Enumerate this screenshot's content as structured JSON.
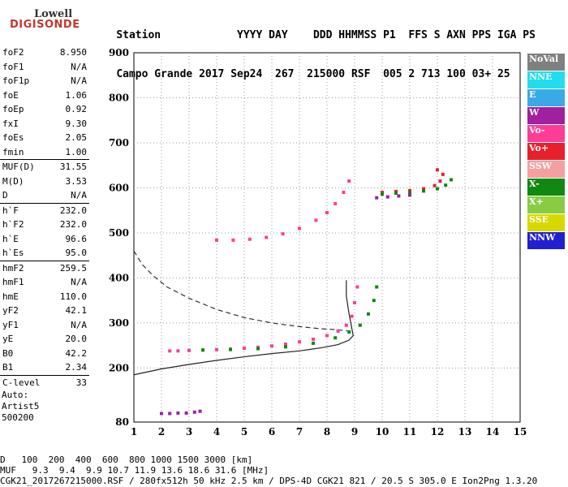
{
  "logo": {
    "line1": "Lowell",
    "line2": "DIGISONDE"
  },
  "header": {
    "row1": [
      "Station",
      "YYYY",
      "DAY",
      "DDD",
      "HHMMSS",
      "P1",
      "FFS",
      "S",
      "AXN",
      "PPS",
      "IGA",
      "PS"
    ],
    "row2": [
      "Campo Grande",
      "2017",
      "Sep24",
      "267",
      "215000",
      "RSF",
      "005",
      "2",
      "713",
      "100",
      "03+",
      "25"
    ]
  },
  "params": [
    {
      "label": "foF2",
      "value": "8.950"
    },
    {
      "label": "foF1",
      "value": "N/A"
    },
    {
      "label": "foF1p",
      "value": "N/A"
    },
    {
      "label": "foE",
      "value": "1.06"
    },
    {
      "label": "foEp",
      "value": "0.92"
    },
    {
      "label": "fxI",
      "value": "9.30"
    },
    {
      "label": "foEs",
      "value": "2.05"
    },
    {
      "label": "fmin",
      "value": "1.00"
    },
    {
      "label": "MUF(D)",
      "value": "31.55",
      "sep": true
    },
    {
      "label": "M(D)",
      "value": "3.53"
    },
    {
      "label": "D",
      "value": "N/A"
    },
    {
      "label": "h`F",
      "value": "232.0",
      "sep": true
    },
    {
      "label": "h`F2",
      "value": "232.0"
    },
    {
      "label": "h`E",
      "value": "96.6"
    },
    {
      "label": "h`Es",
      "value": "95.0"
    },
    {
      "label": "hmF2",
      "value": "259.5",
      "sep": true
    },
    {
      "label": "hmF1",
      "value": "N/A"
    },
    {
      "label": "hmE",
      "value": "110.0"
    },
    {
      "label": "yF2",
      "value": "42.1"
    },
    {
      "label": "yF1",
      "value": "N/A"
    },
    {
      "label": "yE",
      "value": "20.0"
    },
    {
      "label": "B0",
      "value": "42.2"
    },
    {
      "label": "B1",
      "value": "2.34"
    },
    {
      "label": "C-level",
      "value": "33",
      "sep": true
    }
  ],
  "auto": {
    "line1": "Auto:",
    "line2": "Artist5",
    "line3": "500200"
  },
  "legend": [
    {
      "label": "NoVal",
      "color": "#808080"
    },
    {
      "label": "NNE",
      "color": "#22ddee"
    },
    {
      "label": "E",
      "color": "#3aa9e8"
    },
    {
      "label": "W",
      "color": "#a020a0"
    },
    {
      "label": "Vo-",
      "color": "#ff3c96"
    },
    {
      "label": "Vo+",
      "color": "#e8202c"
    },
    {
      "label": "SSW",
      "color": "#f4a0a0"
    },
    {
      "label": "X-",
      "color": "#118811"
    },
    {
      "label": "X+",
      "color": "#88cc44"
    },
    {
      "label": "SSE",
      "color": "#d8d800"
    },
    {
      "label": "NNW",
      "color": "#2020d0"
    }
  ],
  "bottom": {
    "d_label": "D",
    "d_values": "100  200  400  600  800 1000 1500 3000 [km]",
    "muf_label": "MUF",
    "muf_values": "9.3  9.4  9.9 10.7 11.9 13.6 18.6 31.6 [MHz]",
    "footer": "CGK21_2017267215000.RSF / 280fx512h 50 kHz 2.5 km / DPS-4D CGK21 821 / 20.5 S 305.0 E Ion2Png 1.3.20"
  },
  "chart_data": {
    "type": "scatter",
    "xlim": [
      1,
      15
    ],
    "ylim": [
      80,
      900
    ],
    "xticks": [
      1,
      2,
      3,
      4,
      5,
      6,
      7,
      8,
      9,
      10,
      11,
      12,
      13,
      14,
      15
    ],
    "yticks": [
      80,
      200,
      300,
      400,
      500,
      600,
      700,
      800,
      900
    ],
    "series": [
      {
        "name": "Vo-",
        "color": "#ff3c96",
        "x": [
          2.3,
          2.6,
          3.0,
          3.5,
          4.0,
          4.5,
          5.0,
          5.5,
          6.0,
          6.5,
          7.0,
          7.5,
          8.0,
          8.4,
          8.7,
          8.9,
          9.0,
          9.1
        ],
        "y": [
          238,
          238,
          239,
          240,
          241,
          242,
          244,
          246,
          249,
          253,
          258,
          264,
          272,
          282,
          295,
          315,
          345,
          380
        ]
      },
      {
        "name": "Vo-",
        "color": "#ff3c96",
        "x": [
          4.0,
          4.6,
          5.2,
          5.8,
          6.4,
          7.0,
          7.6,
          8.0,
          8.3,
          8.6,
          8.8
        ],
        "y": [
          484,
          484,
          486,
          490,
          498,
          510,
          528,
          545,
          565,
          590,
          615
        ]
      },
      {
        "name": "X-",
        "color": "#118811",
        "x": [
          3.5,
          4.5,
          5.5,
          6.5,
          7.5,
          8.3,
          8.8,
          9.2,
          9.5,
          9.7,
          9.8
        ],
        "y": [
          240,
          241,
          243,
          247,
          255,
          267,
          280,
          295,
          320,
          350,
          380
        ]
      },
      {
        "name": "Vo+",
        "color": "#e8202c",
        "x": [
          10.0,
          10.5,
          11.0,
          11.5,
          11.9,
          12.1,
          12.2,
          12.0
        ],
        "y": [
          590,
          592,
          594,
          598,
          605,
          615,
          630,
          640
        ]
      },
      {
        "name": "X-",
        "color": "#118811",
        "x": [
          10.0,
          10.5,
          11.0,
          11.5,
          12.0,
          12.3,
          12.5
        ],
        "y": [
          586,
          588,
          590,
          593,
          598,
          606,
          618
        ]
      },
      {
        "name": "W",
        "color": "#a020a0",
        "x": [
          2.0,
          2.3,
          2.6,
          2.9,
          3.2,
          3.4
        ],
        "y": [
          99,
          99,
          100,
          100,
          102,
          104
        ]
      },
      {
        "name": "W",
        "color": "#a020a0",
        "x": [
          9.8,
          10.2,
          10.6,
          11.0
        ],
        "y": [
          578,
          580,
          582,
          584
        ]
      }
    ],
    "profile_solid": {
      "x": [
        1.0,
        2.0,
        3.0,
        4.0,
        5.0,
        6.0,
        7.0,
        7.8,
        8.4,
        8.8,
        8.95,
        8.8,
        8.7,
        8.7
      ],
      "y": [
        185,
        198,
        208,
        217,
        225,
        232,
        238,
        245,
        252,
        262,
        272,
        320,
        360,
        395
      ]
    },
    "profile_dashed": {
      "x": [
        1.0,
        1.3,
        1.7,
        2.2,
        3.0,
        4.0,
        5.0,
        6.0,
        7.0,
        7.8,
        8.4,
        8.8,
        8.95
      ],
      "y": [
        460,
        430,
        405,
        380,
        355,
        330,
        312,
        300,
        292,
        287,
        285,
        282,
        280
      ]
    }
  }
}
